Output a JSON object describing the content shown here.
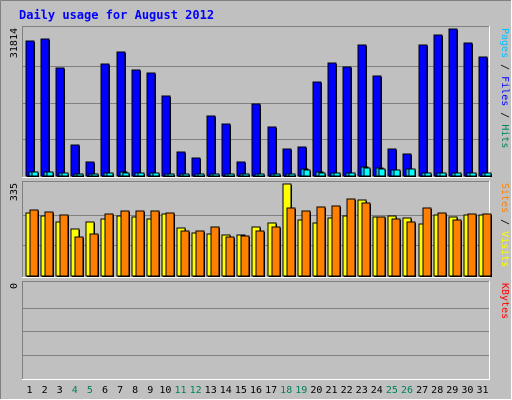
{
  "chart_data": {
    "type": "bar",
    "title": "Daily usage for August 2012",
    "colors": {
      "background": "#c0c0c0",
      "title_text": "#0000ff",
      "hits": "#00805c",
      "hits_bar": "#0000ff",
      "files_bar": "#00c0ff",
      "pages_bar": "#00ffff",
      "files_label": "#0000ff",
      "pages_label": "#00c0ff",
      "visits": "#ffff00",
      "sites": "#ff8000",
      "kbytes": "#ff0000",
      "weekend_day_label": "#00805c",
      "weekday_label": "#000000",
      "gridline": "#808080"
    },
    "categories": [
      "1",
      "2",
      "3",
      "4",
      "5",
      "6",
      "7",
      "8",
      "9",
      "10",
      "11",
      "12",
      "13",
      "14",
      "15",
      "16",
      "17",
      "18",
      "19",
      "20",
      "21",
      "22",
      "23",
      "24",
      "25",
      "26",
      "27",
      "28",
      "29",
      "30",
      "31"
    ],
    "weekend_days": [
      "4",
      "5",
      "11",
      "12",
      "18",
      "19",
      "25",
      "26"
    ],
    "panels": [
      {
        "id": "hits",
        "ymax_label": "31814",
        "ymax": 31814,
        "legend": [
          {
            "text": "Pages",
            "color": "#00c0ff"
          },
          {
            "text": " / ",
            "color": "#000000"
          },
          {
            "text": "Files",
            "color": "#0000ff"
          },
          {
            "text": " / ",
            "color": "#000000"
          },
          {
            "text": "Hits",
            "color": "#00805c"
          }
        ],
        "series": [
          {
            "name": "Hits",
            "values": [
              29270,
              29590,
              23320,
              6630,
              3120,
              24280,
              26930,
              23040,
              22190,
              17260,
              5160,
              3830,
              12980,
              11300,
              2950,
              15680,
              10550,
              5830,
              6170,
              20250,
              24380,
              23620,
              28270,
              21600,
              5750,
              4660,
              28350,
              30520,
              31810,
              28730,
              25760
            ]
          },
          {
            "name": "Files",
            "values": [
              960,
              960,
              700,
              200,
              100,
              700,
              800,
              700,
              700,
              500,
              150,
              120,
              400,
              350,
              100,
              450,
              300,
              180,
              1500,
              800,
              700,
              700,
              1900,
              1800,
              1350,
              1600,
              700,
              700,
              700,
              700,
              700
            ]
          },
          {
            "name": "Pages",
            "values": [
              870,
              870,
              630,
              180,
              90,
              630,
              720,
              630,
              630,
              450,
              130,
              110,
              360,
              310,
              90,
              400,
              270,
              160,
              1300,
              700,
              630,
              630,
              1700,
              1600,
              1200,
              1450,
              630,
              630,
              630,
              630,
              630
            ]
          }
        ]
      },
      {
        "id": "visits",
        "ymax_label": "335",
        "ymax": 335,
        "legend": [
          {
            "text": "Sites",
            "color": "#ff8000"
          },
          {
            "text": " / ",
            "color": "#000000"
          },
          {
            "text": "Visits",
            "color": "#ffff00"
          }
        ],
        "series": [
          {
            "name": "Visits",
            "values": [
              230,
              217,
              195,
              171,
              196,
              207,
              220,
              215,
              206,
              227,
              173,
              158,
              153,
              149,
              149,
              177,
              193,
              335,
              204,
              193,
              210,
              220,
              278,
              215,
              217,
              210,
              189,
              221,
              215,
              221,
              223
            ]
          },
          {
            "name": "Sites",
            "values": [
              240,
              232,
              222,
              141,
              154,
              226,
              238,
              238,
              237,
              229,
              165,
              165,
              177,
              141,
              147,
              164,
              177,
              247,
              237,
              252,
              254,
              281,
              267,
              215,
              207,
              197,
              249,
              230,
              203,
              227,
              224
            ]
          }
        ]
      },
      {
        "id": "kbytes",
        "ymax_label": "0",
        "ymax": 0,
        "legend": [
          {
            "text": "KBytes",
            "color": "#ff0000"
          }
        ],
        "series": [
          {
            "name": "KBytes",
            "values": [
              0,
              0,
              0,
              0,
              0,
              0,
              0,
              0,
              0,
              0,
              0,
              0,
              0,
              0,
              0,
              0,
              0,
              0,
              0,
              0,
              0,
              0,
              0,
              0,
              0,
              0,
              0,
              0,
              0,
              0,
              0
            ]
          }
        ]
      }
    ]
  }
}
